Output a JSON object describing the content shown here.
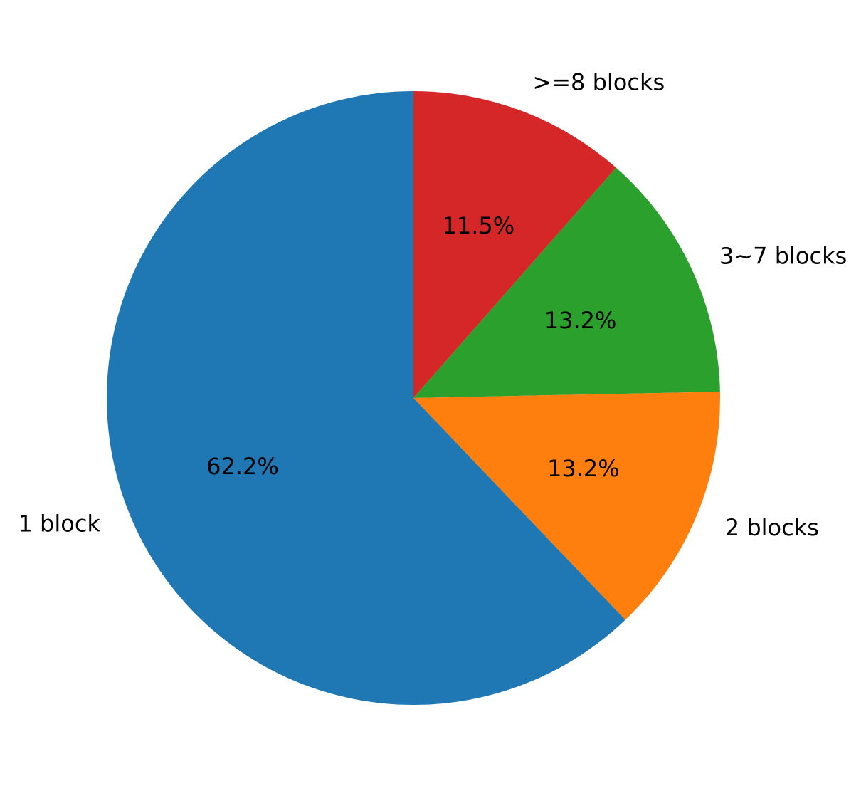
{
  "chart_data": {
    "type": "pie",
    "start_angle_deg": 90,
    "direction": "clockwise",
    "slices": [
      {
        "label": ">=8 blocks",
        "value": 11.5,
        "pct_label": "11.5%",
        "color": "#d62728"
      },
      {
        "label": "3~7 blocks",
        "value": 13.2,
        "pct_label": "13.2%",
        "color": "#2ca02c"
      },
      {
        "label": "2 blocks",
        "value": 13.2,
        "pct_label": "13.2%",
        "color": "#ff7f0e"
      },
      {
        "label": "1 block",
        "value": 62.2,
        "pct_label": "62.2%",
        "color": "#1f77b4"
      }
    ]
  }
}
